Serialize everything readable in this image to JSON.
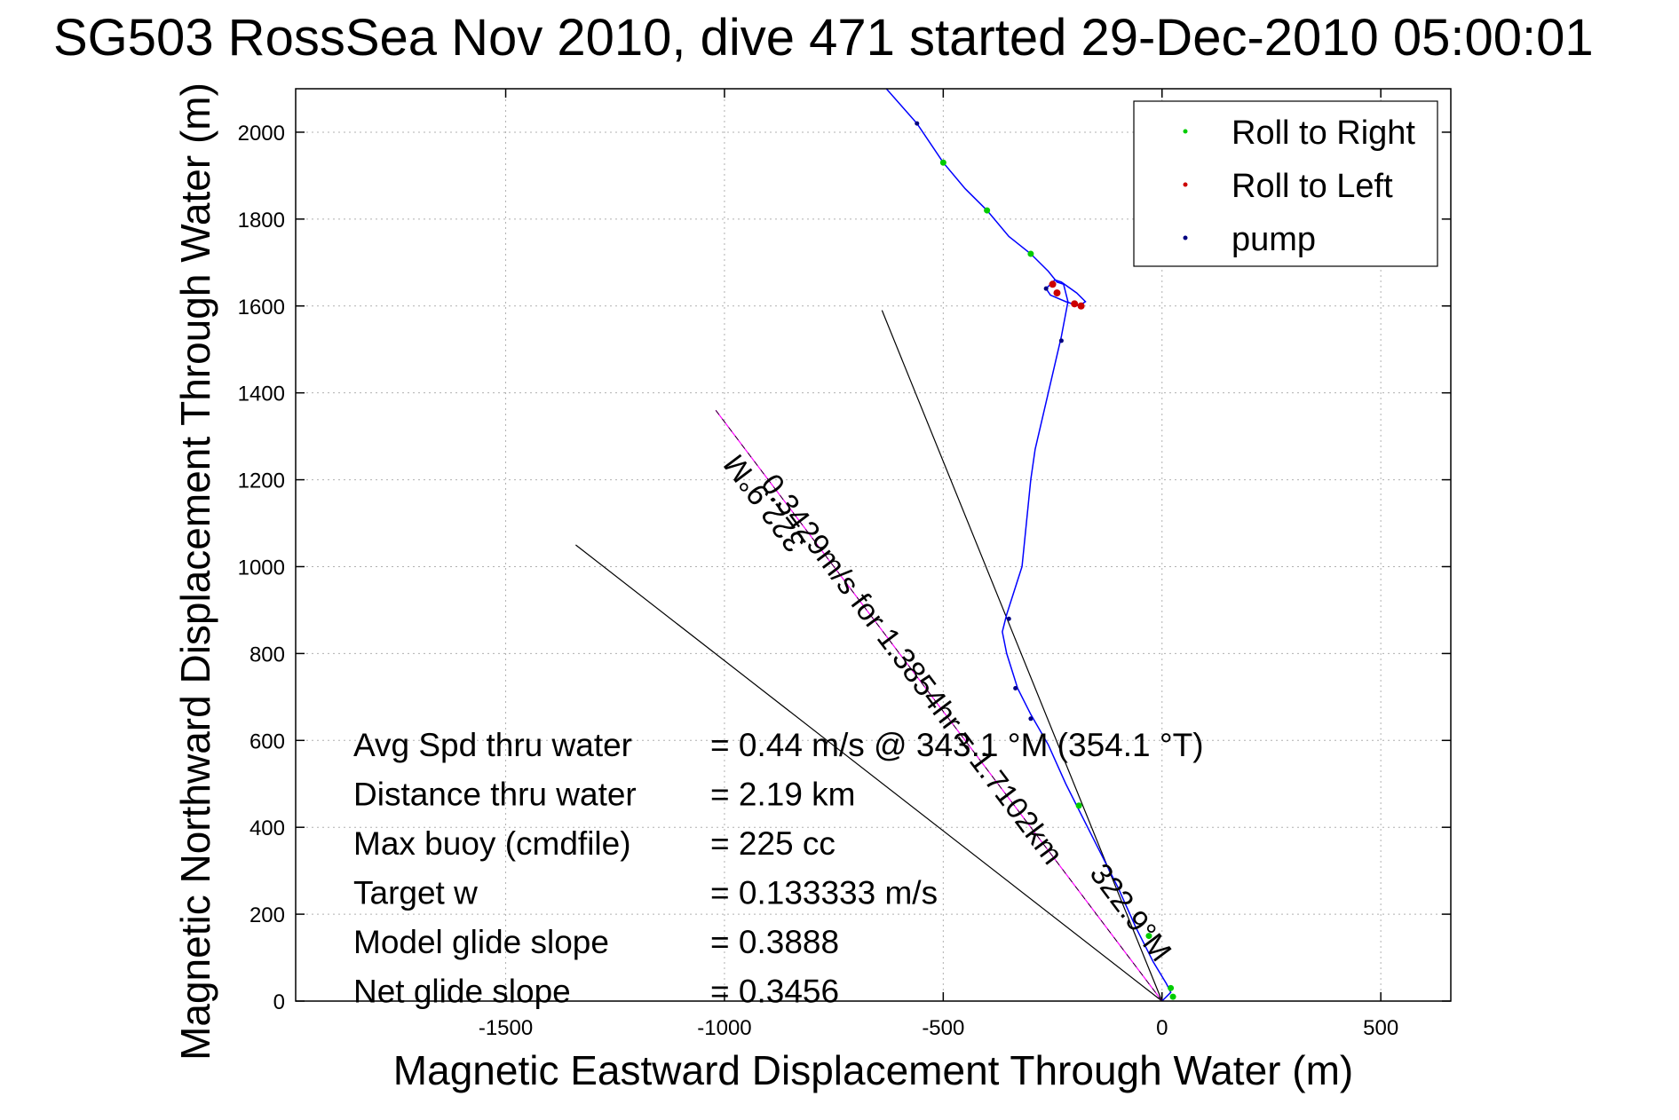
{
  "title": "SG503 RossSea Nov 2010, dive 471 started 29-Dec-2010 05:00:01",
  "chart_data": {
    "type": "scatter",
    "xlabel": "Magnetic Eastward Displacement Through Water (m)",
    "ylabel": "Magnetic Northward Displacement Through Water (m)",
    "xlim": [
      -1980,
      660
    ],
    "ylim": [
      0,
      2100
    ],
    "xticks": [
      -1500,
      -1000,
      -500,
      0,
      500
    ],
    "yticks": [
      0,
      200,
      400,
      600,
      800,
      1000,
      1200,
      1400,
      1600,
      1800,
      2000
    ],
    "grid": true,
    "legend_position": "top-right",
    "legend": [
      {
        "label": "Roll to Right",
        "color": "#00cc00"
      },
      {
        "label": "Roll to Left",
        "color": "#cc0000"
      },
      {
        "label": "pump",
        "color": "#000080"
      }
    ],
    "track": {
      "color": "#0000ff",
      "points": [
        [
          -630,
          2100
        ],
        [
          -560,
          2020
        ],
        [
          -500,
          1930
        ],
        [
          -450,
          1870
        ],
        [
          -400,
          1820
        ],
        [
          -350,
          1760
        ],
        [
          -300,
          1720
        ],
        [
          -260,
          1680
        ],
        [
          -240,
          1655
        ],
        [
          -225,
          1650
        ],
        [
          -215,
          1610
        ],
        [
          -230,
          1530
        ],
        [
          -260,
          1400
        ],
        [
          -290,
          1270
        ],
        [
          -300,
          1200
        ],
        [
          -310,
          1100
        ],
        [
          -320,
          1000
        ],
        [
          -355,
          890
        ],
        [
          -365,
          850
        ],
        [
          -355,
          800
        ],
        [
          -330,
          720
        ],
        [
          -300,
          660
        ],
        [
          -260,
          590
        ],
        [
          -220,
          500
        ],
        [
          -180,
          420
        ],
        [
          -140,
          340
        ],
        [
          -100,
          260
        ],
        [
          -60,
          170
        ],
        [
          -20,
          90
        ],
        [
          10,
          40
        ],
        [
          20,
          20
        ],
        [
          0,
          0
        ]
      ]
    },
    "loop": {
      "points": [
        [
          -245,
          1660
        ],
        [
          -265,
          1640
        ],
        [
          -255,
          1625
        ],
        [
          -220,
          1610
        ],
        [
          -190,
          1600
        ],
        [
          -175,
          1610
        ],
        [
          -195,
          1630
        ],
        [
          -230,
          1655
        ],
        [
          -245,
          1660
        ]
      ]
    },
    "roll_right_points": [
      [
        -500,
        1930
      ],
      [
        -400,
        1820
      ],
      [
        -300,
        1720
      ],
      [
        -190,
        450
      ],
      [
        -30,
        150
      ],
      [
        20,
        30
      ],
      [
        25,
        10
      ]
    ],
    "roll_left_points": [
      [
        -250,
        1650
      ],
      [
        -240,
        1630
      ],
      [
        -200,
        1605
      ],
      [
        -185,
        1600
      ]
    ],
    "pump_points": [
      [
        -560,
        2020
      ],
      [
        -265,
        1640
      ],
      [
        -230,
        1520
      ],
      [
        -350,
        880
      ],
      [
        -335,
        720
      ],
      [
        -300,
        650
      ]
    ],
    "heading_line": {
      "from": [
        0,
        0
      ],
      "to": [
        -1020,
        1360
      ],
      "color": "#ff00ff"
    },
    "envelope_lines": [
      {
        "from": [
          0,
          0
        ],
        "to": [
          -1340,
          1050
        ]
      },
      {
        "from": [
          0,
          0
        ],
        "to": [
          -640,
          1590
        ]
      }
    ],
    "line_labels": [
      {
        "text": "0.3429m/s for 1.3854hr = 1.7102km",
        "at": [
          -590,
          750
        ],
        "rotation": 53
      },
      {
        "text": "322.9°M",
        "at": [
          -90,
          190
        ],
        "rotation": 53
      },
      {
        "text": "322.9°M",
        "at": [
          -890,
          1160
        ],
        "rotation": 233
      }
    ],
    "stats": [
      {
        "label": "Avg Spd thru water",
        "value": "=  0.44 m/s @ 343.1 °M (354.1 °T)"
      },
      {
        "label": "Distance thru water",
        "value": "=  2.19 km"
      },
      {
        "label": "Max buoy (cmdfile)",
        "value": "= 225 cc"
      },
      {
        "label": "Target w",
        "value": "= 0.133333 m/s"
      },
      {
        "label": "Model glide slope",
        "value": "= 0.3888"
      },
      {
        "label": "Net glide slope",
        "value": "= 0.3456"
      }
    ]
  }
}
